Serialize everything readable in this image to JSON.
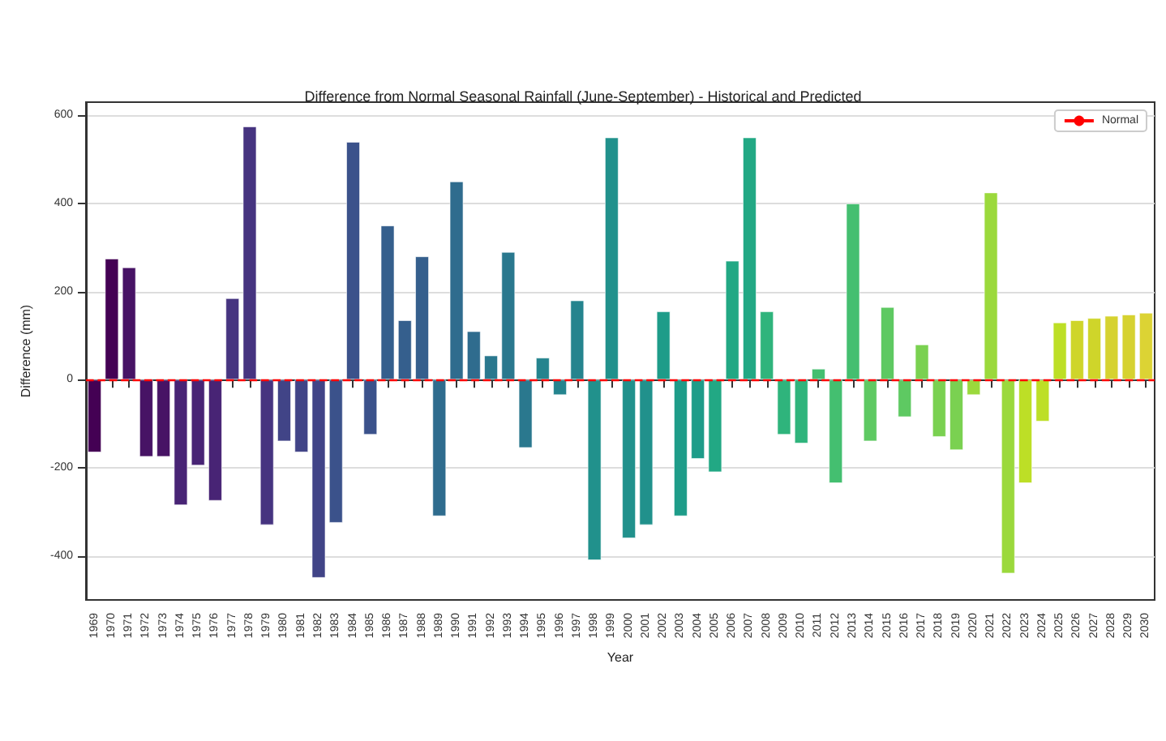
{
  "chart_data": {
    "type": "bar",
    "title": "Difference from Normal Seasonal Rainfall (June-September) - Historical and Predicted",
    "xlabel": "Year",
    "ylabel": "Difference (mm)",
    "categories": [
      "1969",
      "1970",
      "1971",
      "1972",
      "1973",
      "1974",
      "1975",
      "1976",
      "1977",
      "1978",
      "1979",
      "1980",
      "1981",
      "1982",
      "1983",
      "1984",
      "1985",
      "1986",
      "1987",
      "1988",
      "1989",
      "1990",
      "1991",
      "1992",
      "1993",
      "1994",
      "1995",
      "1996",
      "1997",
      "1998",
      "1999",
      "2000",
      "2001",
      "2002",
      "2003",
      "2004",
      "2005",
      "2006",
      "2007",
      "2008",
      "2009",
      "2010",
      "2011",
      "2012",
      "2013",
      "2014",
      "2015",
      "2016",
      "2017",
      "2018",
      "2019",
      "2020",
      "2021",
      "2022",
      "2023",
      "2024",
      "2025",
      "2026",
      "2027",
      "2028",
      "2029",
      "2030"
    ],
    "values": [
      -165,
      275,
      255,
      -175,
      -175,
      -285,
      -195,
      -275,
      185,
      575,
      -330,
      -140,
      -165,
      -450,
      -325,
      540,
      -125,
      350,
      135,
      280,
      -310,
      450,
      110,
      55,
      290,
      -155,
      50,
      -35,
      180,
      -410,
      550,
      -360,
      -330,
      155,
      -310,
      -180,
      -210,
      270,
      550,
      155,
      -125,
      -145,
      25,
      -235,
      400,
      -140,
      165,
      -85,
      80,
      -130,
      -160,
      -35,
      425,
      -440,
      -235,
      -95,
      130,
      135,
      140,
      145,
      148,
      152
    ],
    "colors": [
      "#440154",
      "#440154",
      "#471365",
      "#471365",
      "#471365",
      "#482475",
      "#482475",
      "#482475",
      "#463480",
      "#463480",
      "#463480",
      "#414487",
      "#414487",
      "#414487",
      "#3b528b",
      "#3b528b",
      "#3b528b",
      "#355f8d",
      "#355f8d",
      "#355f8d",
      "#2f6c8e",
      "#2f6c8e",
      "#2f6c8e",
      "#2a788e",
      "#2a788e",
      "#2a788e",
      "#25848e",
      "#25848e",
      "#25848e",
      "#21918c",
      "#21918c",
      "#21918c",
      "#21918c",
      "#1e9c89",
      "#1e9c89",
      "#1e9c89",
      "#22a884",
      "#22a884",
      "#22a884",
      "#2fb47c",
      "#2fb47c",
      "#2fb47c",
      "#44bf70",
      "#44bf70",
      "#44bf70",
      "#5ec962",
      "#5ec962",
      "#5ec962",
      "#7ad151",
      "#7ad151",
      "#7ad151",
      "#9bd93c",
      "#9bd93c",
      "#9bd93c",
      "#bddf26",
      "#bddf26",
      "#bddf26",
      "#cfd52a",
      "#cfd52a",
      "#d6d230",
      "#d6d230",
      "#dcd334"
    ],
    "ylim": [
      -500,
      630
    ],
    "yticks": [
      -400,
      -200,
      0,
      200,
      400,
      600
    ],
    "grid": "y",
    "legend": "top right",
    "ref_lines": [
      {
        "axis": "y",
        "value": 0,
        "label": "Normal",
        "color": "#ff0000",
        "line_style": "dashed"
      }
    ]
  }
}
